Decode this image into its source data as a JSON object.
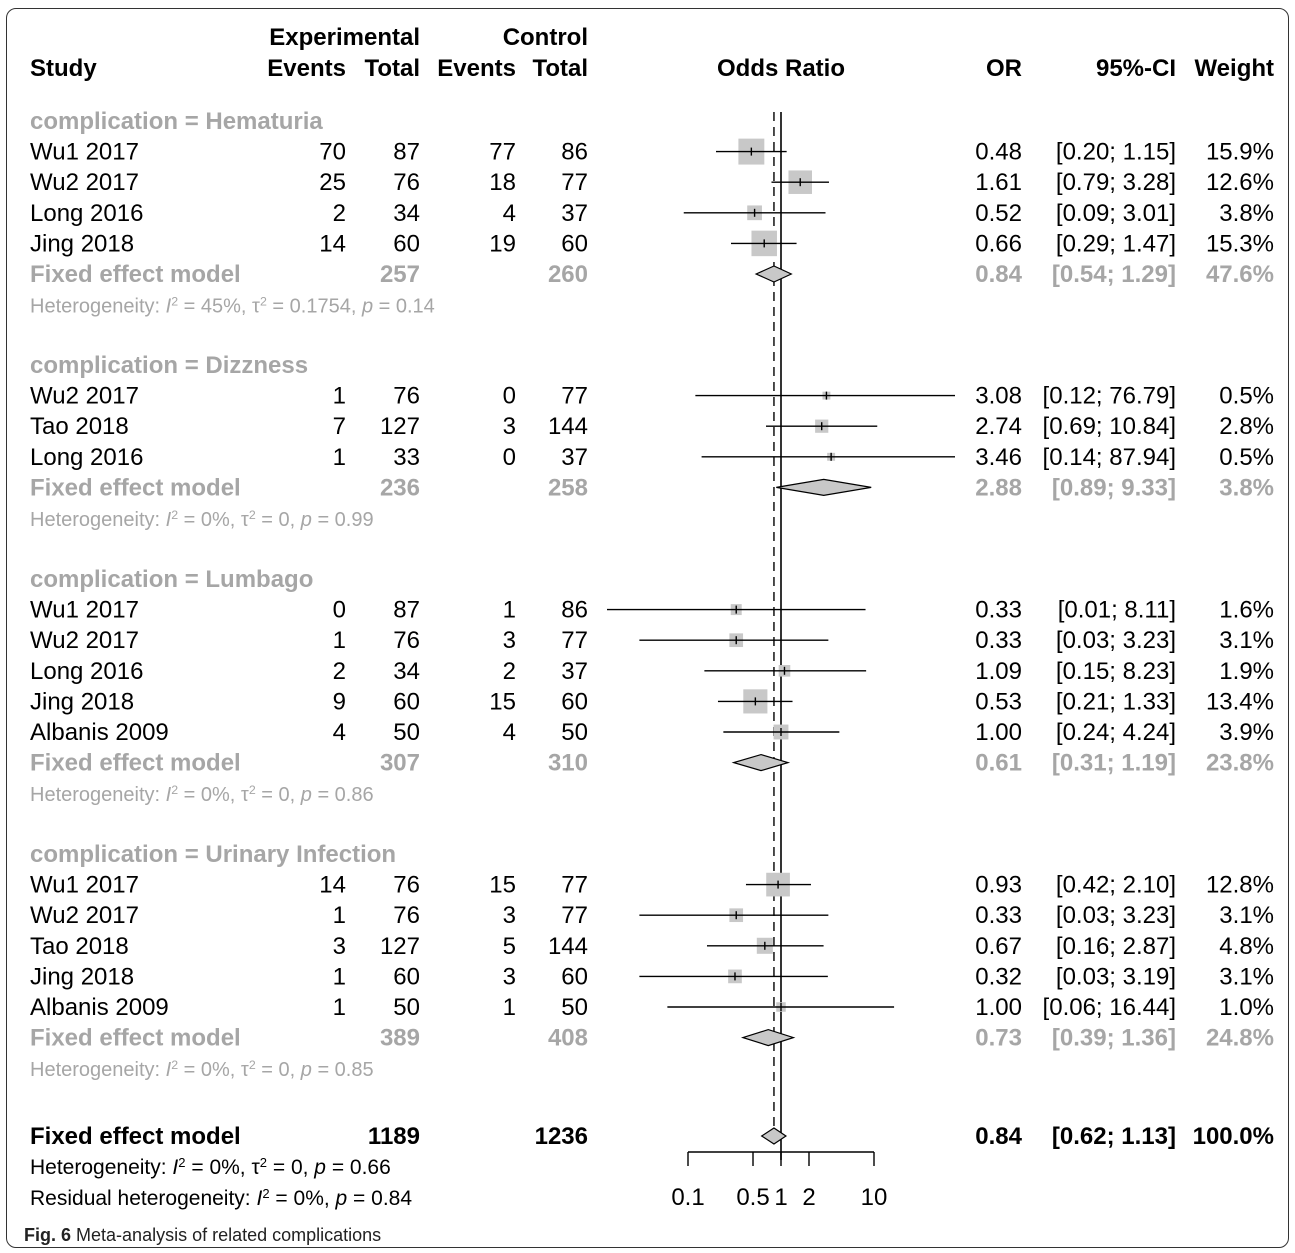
{
  "headers": {
    "study": "Study",
    "experimental": "Experimental",
    "control": "Control",
    "events": "Events",
    "total": "Total",
    "odds_ratio": "Odds Ratio",
    "or": "OR",
    "ci": "95%-CI",
    "weight": "Weight"
  },
  "caption": {
    "label": "Fig. 6",
    "text": "Meta-analysis of related complications"
  },
  "colors": {
    "group_text": "#a6a6a6",
    "box": "#c8c8c8",
    "diamond": "#c8c8c8",
    "line": "#000000"
  },
  "chart_data": {
    "type": "forest",
    "xscale": "log",
    "xlim": [
      0.1,
      10
    ],
    "xticks": [
      0.1,
      0.5,
      1,
      2,
      10
    ],
    "xtick_labels": [
      "0.1",
      "0.5",
      "1",
      "2",
      "10"
    ],
    "reference_line": 1,
    "overall_line": 0.84,
    "groups": [
      {
        "label": "complication = Hematuria",
        "studies": [
          {
            "name": "Wu1 2017",
            "e_events": "70",
            "e_total": "87",
            "c_events": "77",
            "c_total": "86",
            "or": 0.48,
            "lo": 0.2,
            "hi": 1.15,
            "or_text": "0.48",
            "ci_text": "[0.20;  1.15]",
            "weight": 15.9,
            "weight_text": "15.9%"
          },
          {
            "name": "Wu2 2017",
            "e_events": "25",
            "e_total": "76",
            "c_events": "18",
            "c_total": "77",
            "or": 1.61,
            "lo": 0.79,
            "hi": 3.28,
            "or_text": "1.61",
            "ci_text": "[0.79;  3.28]",
            "weight": 12.6,
            "weight_text": "12.6%"
          },
          {
            "name": "Long 2016",
            "e_events": "2",
            "e_total": "34",
            "c_events": "4",
            "c_total": "37",
            "or": 0.52,
            "lo": 0.09,
            "hi": 3.01,
            "or_text": "0.52",
            "ci_text": "[0.09;  3.01]",
            "weight": 3.8,
            "weight_text": "3.8%"
          },
          {
            "name": "Jing 2018",
            "e_events": "14",
            "e_total": "60",
            "c_events": "19",
            "c_total": "60",
            "or": 0.66,
            "lo": 0.29,
            "hi": 1.47,
            "or_text": "0.66",
            "ci_text": "[0.29;  1.47]",
            "weight": 15.3,
            "weight_text": "15.3%"
          }
        ],
        "fixed": {
          "label": "Fixed effect model",
          "e_total": "257",
          "c_total": "260",
          "or": 0.84,
          "lo": 0.54,
          "hi": 1.29,
          "or_text": "0.84",
          "ci_text": "[0.54;  1.29]",
          "weight_text": "47.6%"
        },
        "heterogeneity": {
          "prefix": "Heterogeneity: ",
          "i2": " = 45%, ",
          "tau2": " = 0.1754, ",
          "p": " = 0.14"
        }
      },
      {
        "label": "complication = Dizzness",
        "studies": [
          {
            "name": "Wu2 2017",
            "e_events": "1",
            "e_total": "76",
            "c_events": "0",
            "c_total": "77",
            "or": 3.08,
            "lo": 0.12,
            "hi": 76.79,
            "or_text": "3.08",
            "ci_text": "[0.12; 76.79]",
            "weight": 0.5,
            "weight_text": "0.5%"
          },
          {
            "name": "Tao 2018",
            "e_events": "7",
            "e_total": "127",
            "c_events": "3",
            "c_total": "144",
            "or": 2.74,
            "lo": 0.69,
            "hi": 10.84,
            "or_text": "2.74",
            "ci_text": "[0.69; 10.84]",
            "weight": 2.8,
            "weight_text": "2.8%"
          },
          {
            "name": "Long 2016",
            "e_events": "1",
            "e_total": "33",
            "c_events": "0",
            "c_total": "37",
            "or": 3.46,
            "lo": 0.14,
            "hi": 87.94,
            "or_text": "3.46",
            "ci_text": "[0.14; 87.94]",
            "weight": 0.5,
            "weight_text": "0.5%"
          }
        ],
        "fixed": {
          "label": "Fixed effect model",
          "e_total": "236",
          "c_total": "258",
          "or": 2.88,
          "lo": 0.89,
          "hi": 9.33,
          "or_text": "2.88",
          "ci_text": "[0.89;  9.33]",
          "weight_text": "3.8%"
        },
        "heterogeneity": {
          "prefix": "Heterogeneity: ",
          "i2": " = 0%, ",
          "tau2": " = 0, ",
          "p": " = 0.99"
        }
      },
      {
        "label": "complication = Lumbago",
        "studies": [
          {
            "name": "Wu1 2017",
            "e_events": "0",
            "e_total": "87",
            "c_events": "1",
            "c_total": "86",
            "or": 0.33,
            "lo": 0.01,
            "hi": 8.11,
            "or_text": "0.33",
            "ci_text": "[0.01;  8.11]",
            "weight": 1.6,
            "weight_text": "1.6%"
          },
          {
            "name": "Wu2 2017",
            "e_events": "1",
            "e_total": "76",
            "c_events": "3",
            "c_total": "77",
            "or": 0.33,
            "lo": 0.03,
            "hi": 3.23,
            "or_text": "0.33",
            "ci_text": "[0.03;  3.23]",
            "weight": 3.1,
            "weight_text": "3.1%"
          },
          {
            "name": "Long 2016",
            "e_events": "2",
            "e_total": "34",
            "c_events": "2",
            "c_total": "37",
            "or": 1.09,
            "lo": 0.15,
            "hi": 8.23,
            "or_text": "1.09",
            "ci_text": "[0.15;  8.23]",
            "weight": 1.9,
            "weight_text": "1.9%"
          },
          {
            "name": "Jing 2018",
            "e_events": "9",
            "e_total": "60",
            "c_events": "15",
            "c_total": "60",
            "or": 0.53,
            "lo": 0.21,
            "hi": 1.33,
            "or_text": "0.53",
            "ci_text": "[0.21;  1.33]",
            "weight": 13.4,
            "weight_text": "13.4%"
          },
          {
            "name": "Albanis 2009",
            "e_events": "4",
            "e_total": "50",
            "c_events": "4",
            "c_total": "50",
            "or": 1.0,
            "lo": 0.24,
            "hi": 4.24,
            "or_text": "1.00",
            "ci_text": "[0.24;  4.24]",
            "weight": 3.9,
            "weight_text": "3.9%"
          }
        ],
        "fixed": {
          "label": "Fixed effect model",
          "e_total": "307",
          "c_total": "310",
          "or": 0.61,
          "lo": 0.31,
          "hi": 1.19,
          "or_text": "0.61",
          "ci_text": "[0.31;  1.19]",
          "weight_text": "23.8%"
        },
        "heterogeneity": {
          "prefix": "Heterogeneity: ",
          "i2": " = 0%, ",
          "tau2": " = 0, ",
          "p": " = 0.86"
        }
      },
      {
        "label": "complication = Urinary Infection",
        "studies": [
          {
            "name": "Wu1 2017",
            "e_events": "14",
            "e_total": "76",
            "c_events": "15",
            "c_total": "77",
            "or": 0.93,
            "lo": 0.42,
            "hi": 2.1,
            "or_text": "0.93",
            "ci_text": "[0.42;  2.10]",
            "weight": 12.8,
            "weight_text": "12.8%"
          },
          {
            "name": "Wu2 2017",
            "e_events": "1",
            "e_total": "76",
            "c_events": "3",
            "c_total": "77",
            "or": 0.33,
            "lo": 0.03,
            "hi": 3.23,
            "or_text": "0.33",
            "ci_text": "[0.03;  3.23]",
            "weight": 3.1,
            "weight_text": "3.1%"
          },
          {
            "name": "Tao 2018",
            "e_events": "3",
            "e_total": "127",
            "c_events": "5",
            "c_total": "144",
            "or": 0.67,
            "lo": 0.16,
            "hi": 2.87,
            "or_text": "0.67",
            "ci_text": "[0.16;  2.87]",
            "weight": 4.8,
            "weight_text": "4.8%"
          },
          {
            "name": "Jing 2018",
            "e_events": "1",
            "e_total": "60",
            "c_events": "3",
            "c_total": "60",
            "or": 0.32,
            "lo": 0.03,
            "hi": 3.19,
            "or_text": "0.32",
            "ci_text": "[0.03;  3.19]",
            "weight": 3.1,
            "weight_text": "3.1%"
          },
          {
            "name": "Albanis 2009",
            "e_events": "1",
            "e_total": "50",
            "c_events": "1",
            "c_total": "50",
            "or": 1.0,
            "lo": 0.06,
            "hi": 16.44,
            "or_text": "1.00",
            "ci_text": "[0.06; 16.44]",
            "weight": 1.0,
            "weight_text": "1.0%"
          }
        ],
        "fixed": {
          "label": "Fixed effect model",
          "e_total": "389",
          "c_total": "408",
          "or": 0.73,
          "lo": 0.39,
          "hi": 1.36,
          "or_text": "0.73",
          "ci_text": "[0.39;  1.36]",
          "weight_text": "24.8%"
        },
        "heterogeneity": {
          "prefix": "Heterogeneity: ",
          "i2": " = 0%, ",
          "tau2": " = 0, ",
          "p": " = 0.85"
        }
      }
    ],
    "overall": {
      "label": "Fixed effect model",
      "e_total": "1189",
      "c_total": "1236",
      "or": 0.84,
      "lo": 0.62,
      "hi": 1.13,
      "or_text": "0.84",
      "ci_text": "[0.62;  1.13]",
      "weight_text": "100.0%",
      "heterogeneity": {
        "prefix": "Heterogeneity: ",
        "i2": " = 0%, ",
        "tau2": " = 0, ",
        "p": " = 0.66"
      },
      "residual": {
        "prefix": "Residual heterogeneity: ",
        "i2": " = 0%, ",
        "p": " = 0.84"
      }
    }
  }
}
